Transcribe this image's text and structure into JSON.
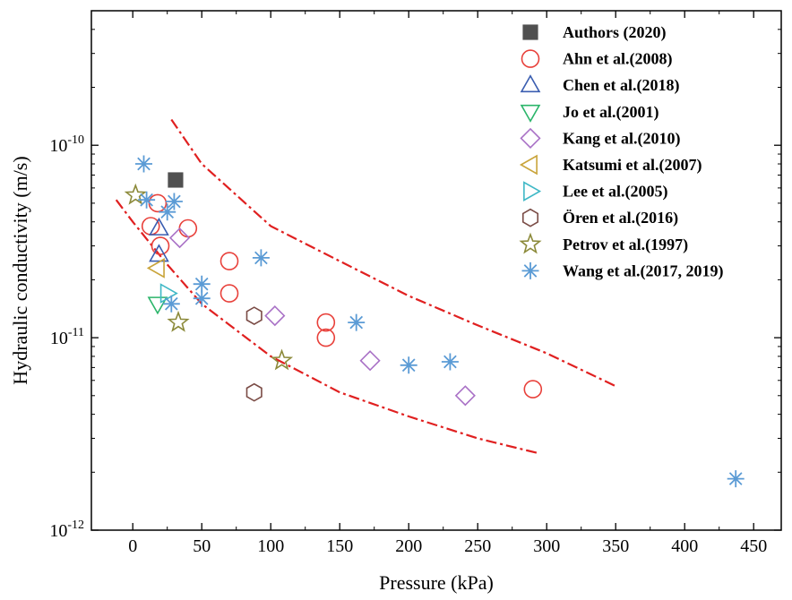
{
  "chart_data": {
    "type": "scatter",
    "xlabel": "Pressure (kPa)",
    "ylabel": "Hydraulic conductivity (m/s)",
    "x_scale": "linear",
    "y_scale": "log",
    "xlim": [
      -30,
      470
    ],
    "ylim": [
      1e-12,
      5e-10
    ],
    "x_ticks": [
      0,
      50,
      100,
      150,
      200,
      250,
      300,
      350,
      400,
      450
    ],
    "x_tick_labels": [
      "0",
      "50",
      "100",
      "150",
      "200",
      "250",
      "300",
      "350",
      "400",
      "450"
    ],
    "y_ticks": [
      {
        "value": 1e-12,
        "base": "10",
        "exp": "-12"
      },
      {
        "value": 1e-11,
        "base": "10",
        "exp": "-11"
      },
      {
        "value": 1e-10,
        "base": "10",
        "exp": "-10"
      }
    ],
    "grid": false,
    "legend_position": "top-right",
    "series": [
      {
        "name": "Authors (2020)",
        "marker": "square-filled",
        "color": "#505050",
        "points": [
          [
            31,
            6.6e-11
          ]
        ]
      },
      {
        "name": "Ahn et al.(2008)",
        "marker": "circle",
        "color": "#e8403a",
        "points": [
          [
            13,
            3.8e-11
          ],
          [
            18,
            5e-11
          ],
          [
            20,
            3e-11
          ],
          [
            40,
            3.7e-11
          ],
          [
            70,
            2.5e-11
          ],
          [
            70,
            1.7e-11
          ],
          [
            140,
            1.2e-11
          ],
          [
            140,
            1e-11
          ],
          [
            290,
            5.4e-12
          ]
        ]
      },
      {
        "name": "Chen et al.(2018)",
        "marker": "triangle-up",
        "color": "#3a5db0",
        "points": [
          [
            19,
            3.7e-11
          ],
          [
            19,
            2.7e-11
          ]
        ]
      },
      {
        "name": "Jo et al.(2001)",
        "marker": "triangle-down",
        "color": "#2bb56a",
        "points": [
          [
            18,
            1.5e-11
          ]
        ]
      },
      {
        "name": "Kang et al.(2010)",
        "marker": "diamond",
        "color": "#a971c6",
        "points": [
          [
            34,
            3.3e-11
          ],
          [
            103,
            1.3e-11
          ],
          [
            172,
            7.6e-12
          ],
          [
            241,
            5e-12
          ]
        ]
      },
      {
        "name": "Katsumi et al.(2007)",
        "marker": "triangle-left",
        "color": "#c9a43a",
        "points": [
          [
            18,
            2.3e-11
          ]
        ]
      },
      {
        "name": "Lee et al.(2005)",
        "marker": "triangle-right",
        "color": "#3fb8c6",
        "points": [
          [
            25,
            1.7e-11
          ]
        ]
      },
      {
        "name": "Ören et al.(2016)",
        "marker": "hexagon",
        "color": "#7a4b45",
        "points": [
          [
            88,
            1.3e-11
          ],
          [
            88,
            5.2e-12
          ]
        ]
      },
      {
        "name": "Petrov et al.(1997)",
        "marker": "star",
        "color": "#8c8a3a",
        "points": [
          [
            2,
            5.5e-11
          ],
          [
            33,
            1.2e-11
          ],
          [
            108,
            7.6e-12
          ]
        ]
      },
      {
        "name": "Wang et al.(2017, 2019)",
        "marker": "asterisk",
        "color": "#5b9bd5",
        "points": [
          [
            8,
            8e-11
          ],
          [
            10,
            5.2e-11
          ],
          [
            25,
            4.5e-11
          ],
          [
            30,
            5.1e-11
          ],
          [
            28,
            1.5e-11
          ],
          [
            50,
            1.9e-11
          ],
          [
            50,
            1.6e-11
          ],
          [
            93,
            2.6e-11
          ],
          [
            162,
            1.2e-11
          ],
          [
            200,
            7.2e-12
          ],
          [
            230,
            7.5e-12
          ],
          [
            437,
            1.85e-12
          ]
        ]
      }
    ],
    "bounds": [
      {
        "name": "upper bound",
        "style": "dash-dot",
        "color": "#e02020",
        "points": [
          [
            28,
            1.36e-10
          ],
          [
            50,
            8e-11
          ],
          [
            100,
            3.8e-11
          ],
          [
            150,
            2.5e-11
          ],
          [
            200,
            1.65e-11
          ],
          [
            250,
            1.16e-11
          ],
          [
            300,
            8.3e-12
          ],
          [
            350,
            5.6e-12
          ]
        ]
      },
      {
        "name": "lower bound",
        "style": "dash-dot",
        "color": "#e02020",
        "points": [
          [
            -12,
            5.2e-11
          ],
          [
            0,
            4e-11
          ],
          [
            25,
            2.4e-11
          ],
          [
            50,
            1.5e-11
          ],
          [
            100,
            8e-12
          ],
          [
            150,
            5.2e-12
          ],
          [
            200,
            3.9e-12
          ],
          [
            250,
            3e-12
          ],
          [
            295,
            2.5e-12
          ]
        ]
      }
    ]
  }
}
